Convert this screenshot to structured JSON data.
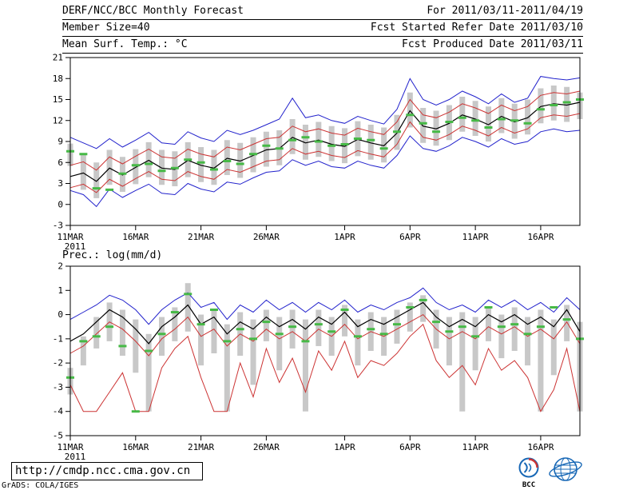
{
  "header": {
    "rows": [
      {
        "left": "DERF/NCC/BCC Monthly Forecast",
        "right": "For 2011/03/11-2011/04/19"
      },
      {
        "left": "Member Size=40",
        "right": "Fcst Started Refer Date 2011/03/10"
      },
      {
        "left": "Mean Surf. Temp.: °C",
        "right": "Fcst Produced Date 2011/03/11"
      }
    ]
  },
  "footer": {
    "url": "http://cmdp.ncc.cma.gov.cn",
    "credit": "GrADS: COLA/IGES",
    "logos": [
      {
        "label": "BCC"
      },
      {
        "label": ""
      }
    ]
  },
  "chart_data": [
    {
      "type": "line",
      "title": "Mean Surf. Temp.: °C",
      "ylabel": "°C",
      "ylim": [
        -3,
        21
      ],
      "yticks": [
        21,
        18,
        15,
        12,
        9,
        6,
        3,
        0,
        -3
      ],
      "x_count": 40,
      "x_start": "11MAR2011",
      "x_end": "19APR2011",
      "x_sub_label": "2011",
      "xticks": [
        {
          "pos": 0,
          "label": "11MAR"
        },
        {
          "pos": 5,
          "label": "16MAR"
        },
        {
          "pos": 10,
          "label": "21MAR"
        },
        {
          "pos": 15,
          "label": "26MAR"
        },
        {
          "pos": 21,
          "label": "1APR"
        },
        {
          "pos": 26,
          "label": "6APR"
        },
        {
          "pos": 31,
          "label": "11APR"
        },
        {
          "pos": 36,
          "label": "16APR"
        }
      ],
      "series": [
        {
          "name": "ensemble-max",
          "color": "#2222cc",
          "width": 1,
          "values": [
            9.6,
            8.8,
            8.0,
            9.4,
            8.2,
            9.2,
            10.3,
            8.8,
            8.6,
            10.4,
            9.5,
            9.0,
            10.6,
            10.0,
            10.6,
            11.4,
            12.2,
            15.2,
            12.4,
            12.8,
            12.0,
            11.6,
            12.6,
            12.0,
            11.5,
            13.6,
            18.0,
            15.0,
            14.2,
            15.0,
            16.2,
            15.4,
            14.4,
            15.8,
            14.6,
            15.2,
            18.3,
            18.0,
            17.8,
            18.1
          ]
        },
        {
          "name": "upper-quartile",
          "color": "#cc3333",
          "width": 1,
          "values": [
            5.6,
            6.1,
            4.9,
            6.8,
            5.8,
            6.9,
            7.9,
            6.8,
            6.6,
            7.9,
            7.2,
            6.8,
            8.2,
            7.8,
            8.6,
            9.4,
            9.6,
            11.2,
            10.4,
            10.8,
            10.2,
            9.9,
            10.9,
            10.4,
            10.0,
            11.8,
            15.0,
            12.8,
            12.4,
            13.2,
            14.4,
            13.8,
            13.0,
            14.2,
            13.4,
            14.0,
            15.6,
            16.0,
            15.8,
            16.2
          ]
        },
        {
          "name": "ensemble-mean",
          "color": "#000000",
          "width": 1.2,
          "values": [
            4.0,
            4.5,
            3.3,
            5.2,
            4.2,
            5.3,
            6.3,
            5.2,
            5.0,
            6.3,
            5.6,
            5.2,
            6.6,
            6.2,
            7.0,
            7.8,
            8.0,
            9.6,
            8.8,
            9.2,
            8.6,
            8.3,
            9.3,
            8.8,
            8.4,
            10.2,
            13.4,
            11.2,
            10.8,
            11.6,
            12.8,
            12.2,
            11.4,
            12.6,
            11.8,
            12.4,
            14.0,
            14.4,
            14.2,
            14.6
          ]
        },
        {
          "name": "lower-quartile",
          "color": "#cc3333",
          "width": 1,
          "values": [
            2.4,
            2.9,
            1.7,
            3.6,
            2.6,
            3.7,
            4.7,
            3.6,
            3.4,
            4.7,
            4.0,
            3.6,
            5.0,
            4.6,
            5.4,
            6.2,
            6.4,
            8.0,
            7.2,
            7.6,
            7.0,
            6.7,
            7.7,
            7.2,
            6.8,
            8.6,
            11.8,
            9.6,
            9.2,
            10.0,
            11.2,
            10.6,
            9.8,
            11.0,
            10.2,
            10.8,
            12.4,
            12.8,
            12.6,
            13.0
          ]
        },
        {
          "name": "ensemble-min",
          "color": "#2222cc",
          "width": 1,
          "values": [
            2.0,
            1.4,
            -0.3,
            2.2,
            1.0,
            2.0,
            2.9,
            1.6,
            1.4,
            3.0,
            2.2,
            1.8,
            3.2,
            2.9,
            3.8,
            4.6,
            4.8,
            6.4,
            5.6,
            6.2,
            5.4,
            5.2,
            6.2,
            5.6,
            5.2,
            7.0,
            9.8,
            8.0,
            7.6,
            8.4,
            9.6,
            9.0,
            8.2,
            9.4,
            8.6,
            9.0,
            10.4,
            10.8,
            10.4,
            10.6
          ]
        }
      ],
      "bars": {
        "name": "member-spread",
        "color": "#c8c8c8",
        "high": [
          8.7,
          7.2,
          6.0,
          7.8,
          6.8,
          7.9,
          8.9,
          7.8,
          7.6,
          8.9,
          8.2,
          7.8,
          9.2,
          8.8,
          9.6,
          10.4,
          10.6,
          12.2,
          11.4,
          11.8,
          11.2,
          10.9,
          11.9,
          11.4,
          11.0,
          12.8,
          16.0,
          13.8,
          13.4,
          14.2,
          15.4,
          14.8,
          14.0,
          15.2,
          14.4,
          15.0,
          16.6,
          17.0,
          16.8,
          16.0
        ],
        "low": [
          5.5,
          2.1,
          0.9,
          2.8,
          1.8,
          2.9,
          3.9,
          2.8,
          2.6,
          3.9,
          3.2,
          2.8,
          4.2,
          3.8,
          4.6,
          5.4,
          5.6,
          7.2,
          6.4,
          6.8,
          6.2,
          5.9,
          6.9,
          6.4,
          6.0,
          7.8,
          11.0,
          8.8,
          8.4,
          9.2,
          10.4,
          9.8,
          9.0,
          10.2,
          9.4,
          10.0,
          11.6,
          12.0,
          11.8,
          12.2
        ]
      },
      "obs": {
        "name": "observation",
        "color": "#46b946",
        "values": [
          7.6,
          7.2,
          2.3,
          2.1,
          4.4,
          5.6,
          5.8,
          4.8,
          5.2,
          6.4,
          6.0,
          5.0,
          6.2,
          5.8,
          7.2,
          8.4,
          8.0,
          9.2,
          9.6,
          9.0,
          8.4,
          8.6,
          9.4,
          9.2,
          8.0,
          10.4,
          12.8,
          11.6,
          10.4,
          11.8,
          12.4,
          12.0,
          11.0,
          12.2,
          12.0,
          11.6,
          13.6,
          14.2,
          14.6,
          15.0
        ]
      }
    },
    {
      "type": "line",
      "title": "Prec.: log(mm/d)",
      "ylabel": "log(mm/d)",
      "ylim": [
        -5,
        2
      ],
      "yticks": [
        2,
        1,
        0,
        -1,
        -2,
        -3,
        -4,
        -5
      ],
      "x_count": 40,
      "x_start": "11MAR2011",
      "x_end": "19APR2011",
      "x_sub_label": "2011",
      "xticks": [
        {
          "pos": 0,
          "label": "11MAR"
        },
        {
          "pos": 5,
          "label": "16MAR"
        },
        {
          "pos": 10,
          "label": "21MAR"
        },
        {
          "pos": 15,
          "label": "26MAR"
        },
        {
          "pos": 21,
          "label": "1APR"
        },
        {
          "pos": 26,
          "label": "6APR"
        },
        {
          "pos": 31,
          "label": "11APR"
        },
        {
          "pos": 36,
          "label": "16APR"
        }
      ],
      "series": [
        {
          "name": "ensemble-max",
          "color": "#2222cc",
          "width": 1,
          "values": [
            -0.2,
            0.1,
            0.4,
            0.8,
            0.6,
            0.2,
            -0.4,
            0.2,
            0.6,
            0.9,
            0.3,
            0.5,
            -0.2,
            0.4,
            0.1,
            0.6,
            0.2,
            0.5,
            0.1,
            0.5,
            0.2,
            0.6,
            0.1,
            0.4,
            0.2,
            0.5,
            0.7,
            1.1,
            0.5,
            0.2,
            0.4,
            0.1,
            0.6,
            0.3,
            0.6,
            0.2,
            0.5,
            0.1,
            0.7,
            0.2
          ]
        },
        {
          "name": "ensemble-mean",
          "color": "#000000",
          "width": 1.2,
          "values": [
            -1.1,
            -0.8,
            -0.3,
            0.2,
            -0.1,
            -0.6,
            -1.2,
            -0.5,
            -0.1,
            0.4,
            -0.4,
            -0.1,
            -0.8,
            -0.3,
            -0.6,
            -0.1,
            -0.5,
            -0.2,
            -0.6,
            -0.1,
            -0.4,
            0.1,
            -0.5,
            -0.2,
            -0.4,
            -0.1,
            0.2,
            0.5,
            -0.1,
            -0.5,
            -0.2,
            -0.5,
            0.0,
            -0.3,
            0.0,
            -0.4,
            -0.1,
            -0.5,
            0.2,
            -0.7
          ]
        },
        {
          "name": "upper-quartile",
          "color": "#cc3333",
          "width": 1,
          "values": [
            -1.6,
            -1.3,
            -0.8,
            -0.3,
            -0.6,
            -1.1,
            -1.7,
            -1.0,
            -0.6,
            -0.1,
            -0.9,
            -0.6,
            -1.3,
            -0.8,
            -1.1,
            -0.6,
            -1.0,
            -0.7,
            -1.1,
            -0.6,
            -0.9,
            -0.4,
            -1.0,
            -0.7,
            -0.9,
            -0.6,
            -0.3,
            0.0,
            -0.6,
            -1.0,
            -0.7,
            -1.0,
            -0.5,
            -0.8,
            -0.5,
            -0.9,
            -0.6,
            -1.0,
            -0.3,
            -1.2
          ]
        },
        {
          "name": "lower-quartile",
          "color": "#cc3333",
          "width": 1,
          "values": [
            -2.9,
            -4.0,
            -4.0,
            -3.2,
            -2.4,
            -4.0,
            -4.0,
            -2.2,
            -1.4,
            -0.9,
            -2.6,
            -4.0,
            -4.0,
            -2.0,
            -3.4,
            -1.4,
            -2.8,
            -1.8,
            -3.2,
            -1.5,
            -2.3,
            -1.1,
            -2.6,
            -1.9,
            -2.1,
            -1.6,
            -0.9,
            -0.4,
            -1.9,
            -2.6,
            -2.1,
            -2.9,
            -1.4,
            -2.3,
            -1.9,
            -2.6,
            -4.0,
            -3.1,
            -1.4,
            -4.0
          ]
        }
      ],
      "bars": {
        "name": "member-spread",
        "color": "#c8c8c8",
        "high": [
          -2.2,
          -0.9,
          -0.1,
          0.5,
          0.2,
          -0.2,
          -0.8,
          -0.1,
          0.3,
          1.3,
          0.0,
          0.2,
          -0.4,
          0.1,
          -0.2,
          0.2,
          -0.1,
          0.2,
          -0.2,
          0.2,
          -0.1,
          0.4,
          -0.2,
          0.1,
          -0.1,
          0.2,
          0.5,
          0.8,
          0.2,
          -0.1,
          0.1,
          -0.1,
          0.3,
          0.0,
          0.3,
          -0.1,
          0.2,
          -0.2,
          0.4,
          -0.3
        ],
        "low": [
          -3.3,
          -2.1,
          -1.4,
          -1.1,
          -1.7,
          -2.4,
          -4.0,
          -1.7,
          -1.1,
          -0.7,
          -2.1,
          -1.6,
          -4.0,
          -1.7,
          -2.9,
          -1.1,
          -2.3,
          -1.4,
          -4.0,
          -1.3,
          -1.7,
          -0.9,
          -2.1,
          -1.5,
          -1.7,
          -1.2,
          -0.7,
          -0.3,
          -1.4,
          -2.1,
          -4.0,
          -2.3,
          -1.1,
          -1.8,
          -1.5,
          -2.1,
          -4.0,
          -2.5,
          -1.1,
          -4.0
        ]
      },
      "obs": {
        "name": "observation",
        "color": "#46b946",
        "values": [
          -2.6,
          -1.1,
          -0.9,
          -0.5,
          -1.3,
          -4.0,
          -1.5,
          -0.8,
          0.1,
          0.85,
          -0.4,
          0.2,
          -1.1,
          -0.6,
          -1.0,
          -0.3,
          -0.8,
          -0.5,
          -1.1,
          -0.4,
          -0.7,
          0.2,
          -0.9,
          -0.6,
          -0.8,
          -0.4,
          0.3,
          0.6,
          -0.3,
          -0.7,
          -0.5,
          -0.9,
          0.3,
          -0.5,
          -0.4,
          -0.8,
          -0.5,
          0.3,
          -0.2,
          -1.0
        ]
      }
    }
  ]
}
